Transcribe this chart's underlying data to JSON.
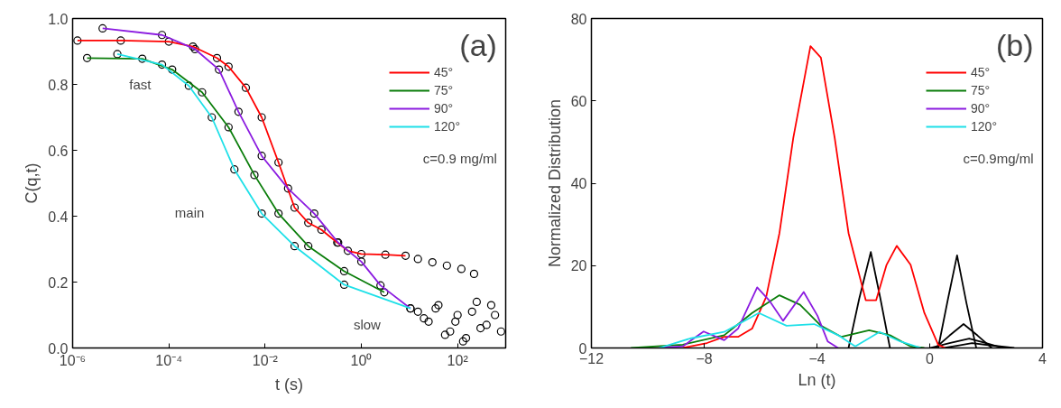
{
  "chart_data": [
    {
      "type": "line",
      "xlabel": "t (s)",
      "ylabel": "C(q,t)",
      "log": "x",
      "grid": false,
      "legend": "top right",
      "marker": "none",
      "xlim": [
        1e-06,
        1000
      ],
      "ylim": [
        0,
        1.0
      ],
      "xticks": [
        {
          "value": 1e-06,
          "label": "10⁻⁶"
        },
        {
          "value": 0.0001,
          "label": "10⁻⁴"
        },
        {
          "value": 0.01,
          "label": "10⁻²"
        },
        {
          "value": 1,
          "label": "10⁰"
        },
        {
          "value": 100,
          "label": "10²"
        }
      ],
      "yticks": [
        {
          "value": 0,
          "label": "0.0"
        },
        {
          "value": 0.2,
          "label": "0.2"
        },
        {
          "value": 0.4,
          "label": "0.4"
        },
        {
          "value": 0.6,
          "label": "0.6"
        },
        {
          "value": 0.8,
          "label": "0.8"
        },
        {
          "value": 1.0,
          "label": "1.0"
        }
      ],
      "annotations": [
        "(a)",
        "c=0.9 mg/ml",
        "fast",
        "main",
        "slow"
      ],
      "series": [
        {
          "type": "scatter",
          "marker": "circle",
          "color": "#000000",
          "x": [
            1.26e-06,
            1e-05,
            0.0001,
            0.000316,
            0.001,
            0.00174,
            0.00398,
            0.0085,
            0.019,
            0.041,
            0.079,
            0.148,
            0.316,
            0.525,
            1,
            3.16,
            8.3,
            15,
            30,
            60,
            120,
            220
          ],
          "values": [
            0.933,
            0.933,
            0.93,
            0.915,
            0.88,
            0.854,
            0.79,
            0.7,
            0.563,
            0.426,
            0.38,
            0.359,
            0.32,
            0.295,
            0.285,
            0.283,
            0.28,
            0.27,
            0.26,
            0.25,
            0.24,
            0.225
          ]
        },
        {
          "type": "scatter",
          "marker": "circle",
          "color": "#000000",
          "x": [
            4.2e-06,
            7.2e-05,
            0.00035,
            0.0011,
            0.0028,
            0.0085,
            0.03,
            0.105,
            0.33,
            1,
            2.5,
            10.5,
            15,
            25,
            40,
            70,
            100,
            150,
            250,
            400,
            600
          ],
          "values": [
            0.97,
            0.95,
            0.907,
            0.845,
            0.717,
            0.583,
            0.484,
            0.408,
            0.32,
            0.262,
            0.19,
            0.12,
            0.11,
            0.08,
            0.13,
            0.05,
            0.1,
            0.03,
            0.14,
            0.07,
            0.1
          ]
        },
        {
          "type": "scatter",
          "marker": "circle",
          "color": "#000000",
          "x": [
            2e-06,
            2.8e-05,
            0.000117,
            0.00049,
            0.00174,
            0.006,
            0.019,
            0.079,
            0.44,
            3
          ],
          "values": [
            0.88,
            0.878,
            0.845,
            0.776,
            0.67,
            0.525,
            0.408,
            0.309,
            0.233,
            0.169
          ]
        },
        {
          "type": "scatter",
          "marker": "circle",
          "color": "#000000",
          "x": [
            8.5e-06,
            7.2e-05,
            0.00026,
            0.00078,
            0.0023,
            0.0085,
            0.041,
            0.44,
            10.5,
            20,
            35,
            55,
            90,
            130,
            200,
            300,
            500,
            800
          ],
          "values": [
            0.892,
            0.86,
            0.796,
            0.7,
            0.542,
            0.408,
            0.309,
            0.192,
            0.12,
            0.09,
            0.12,
            0.04,
            0.08,
            0.02,
            0.11,
            0.06,
            0.13,
            0.05
          ]
        },
        {
          "name": "45°",
          "color": "#ff0000",
          "x": [
            1.26e-06,
            1e-05,
            0.0001,
            0.000316,
            0.001,
            0.00174,
            0.00398,
            0.0085,
            0.019,
            0.041,
            0.079,
            0.148,
            0.316,
            0.525,
            1,
            3.16,
            8.3
          ],
          "values": [
            0.933,
            0.933,
            0.93,
            0.915,
            0.88,
            0.854,
            0.79,
            0.7,
            0.563,
            0.426,
            0.38,
            0.359,
            0.32,
            0.295,
            0.285,
            0.283,
            0.28
          ]
        },
        {
          "name": "75°",
          "color": "#0a7d0a",
          "x": [
            2e-06,
            2.8e-05,
            0.000117,
            0.00049,
            0.00174,
            0.006,
            0.019,
            0.079,
            0.44,
            3
          ],
          "values": [
            0.88,
            0.878,
            0.845,
            0.776,
            0.67,
            0.525,
            0.408,
            0.309,
            0.233,
            0.169
          ]
        },
        {
          "name": "90°",
          "color": "#8b1be0",
          "x": [
            4.2e-06,
            7.2e-05,
            0.00035,
            0.0011,
            0.0028,
            0.0085,
            0.03,
            0.105,
            0.33,
            1,
            2.5,
            10.5
          ],
          "values": [
            0.97,
            0.95,
            0.907,
            0.845,
            0.717,
            0.583,
            0.484,
            0.408,
            0.32,
            0.262,
            0.19,
            0.12
          ]
        },
        {
          "name": "120°",
          "color": "#1fe0e8",
          "x": [
            8.5e-06,
            7.2e-05,
            0.00026,
            0.00078,
            0.0023,
            0.0085,
            0.041,
            0.44,
            10.5
          ],
          "values": [
            0.892,
            0.86,
            0.796,
            0.7,
            0.542,
            0.408,
            0.309,
            0.192,
            0.12
          ]
        }
      ]
    },
    {
      "type": "line",
      "xlabel": "Ln (t)",
      "ylabel": "Normalized Distribution",
      "grid": false,
      "legend": "top right",
      "marker": "none",
      "xlim": [
        -12,
        4
      ],
      "ylim": [
        0,
        80
      ],
      "xticks": [
        -12,
        -8,
        -4,
        0,
        4
      ],
      "yticks": [
        0,
        20,
        40,
        60,
        80
      ],
      "annotations": [
        "(b)",
        "c=0.9mg/ml"
      ],
      "series": [
        {
          "color": "#000000",
          "x": [
            -2.88,
            -2.5,
            -2.09,
            -1.75,
            -1.41
          ],
          "values": [
            0,
            12,
            23.3,
            12,
            0
          ]
        },
        {
          "color": "#000000",
          "x": [
            0.3,
            0.65,
            0.97,
            1.3,
            1.65
          ],
          "values": [
            0,
            12,
            22.5,
            11,
            0
          ]
        },
        {
          "color": "#000000",
          "x": [
            0.2,
            0.7,
            1.2,
            1.7,
            2.2
          ],
          "values": [
            0,
            3,
            5.8,
            3,
            0
          ]
        },
        {
          "color": "#000000",
          "x": [
            0,
            0.7,
            1.4,
            2,
            2.6
          ],
          "values": [
            0,
            1.2,
            2.3,
            1.2,
            0
          ]
        },
        {
          "color": "#000000",
          "x": [
            0.5,
            1,
            1.5,
            2.2,
            3
          ],
          "values": [
            0,
            0.6,
            1.2,
            0.6,
            0
          ]
        },
        {
          "name": "45°",
          "color": "#ff0000",
          "x": [
            -8.76,
            -7.9,
            -7.29,
            -6.8,
            -6.3,
            -5.8,
            -5.33,
            -4.84,
            -4.23,
            -3.86,
            -3.37,
            -2.88,
            -2.27,
            -1.9,
            -1.53,
            -1.17,
            -0.68,
            -0.19,
            0.3,
            0.55
          ],
          "values": [
            0,
            1.2,
            2.7,
            2.7,
            4.7,
            12.4,
            27.9,
            51,
            73.3,
            70.5,
            51,
            27.9,
            11.6,
            11.6,
            20.2,
            24.8,
            20.2,
            8.5,
            0.8,
            0
          ]
        },
        {
          "name": "75°",
          "color": "#0a7d0a",
          "x": [
            -10.6,
            -8.76,
            -7.29,
            -6.3,
            -5.33,
            -4.6,
            -3.86,
            -3.13,
            -2.15,
            -1.41,
            -0.68,
            -0.19
          ],
          "values": [
            0,
            0.8,
            3.1,
            8.5,
            12.8,
            10.5,
            5.4,
            2.7,
            4.3,
            3.1,
            0.4,
            0
          ]
        },
        {
          "name": "90°",
          "color": "#8b1be0",
          "x": [
            -9.6,
            -8.76,
            -8.02,
            -7.29,
            -6.8,
            -6.12,
            -5.7,
            -5.2,
            -4.47,
            -3.98,
            -3.62,
            -3.25
          ],
          "values": [
            0,
            0.4,
            4,
            1.9,
            4.7,
            14.7,
            11.6,
            6.6,
            13.6,
            7.8,
            1.6,
            0
          ]
        },
        {
          "name": "120°",
          "color": "#1fe0e8",
          "x": [
            -9.6,
            -8.5,
            -7.29,
            -6.06,
            -5.08,
            -4.1,
            -3.25,
            -2.64,
            -1.78,
            -1.05,
            -0.31
          ],
          "values": [
            0,
            2.3,
            3.9,
            8.5,
            5.4,
            5.8,
            3.1,
            0.4,
            3.9,
            1.6,
            0
          ]
        }
      ]
    }
  ]
}
